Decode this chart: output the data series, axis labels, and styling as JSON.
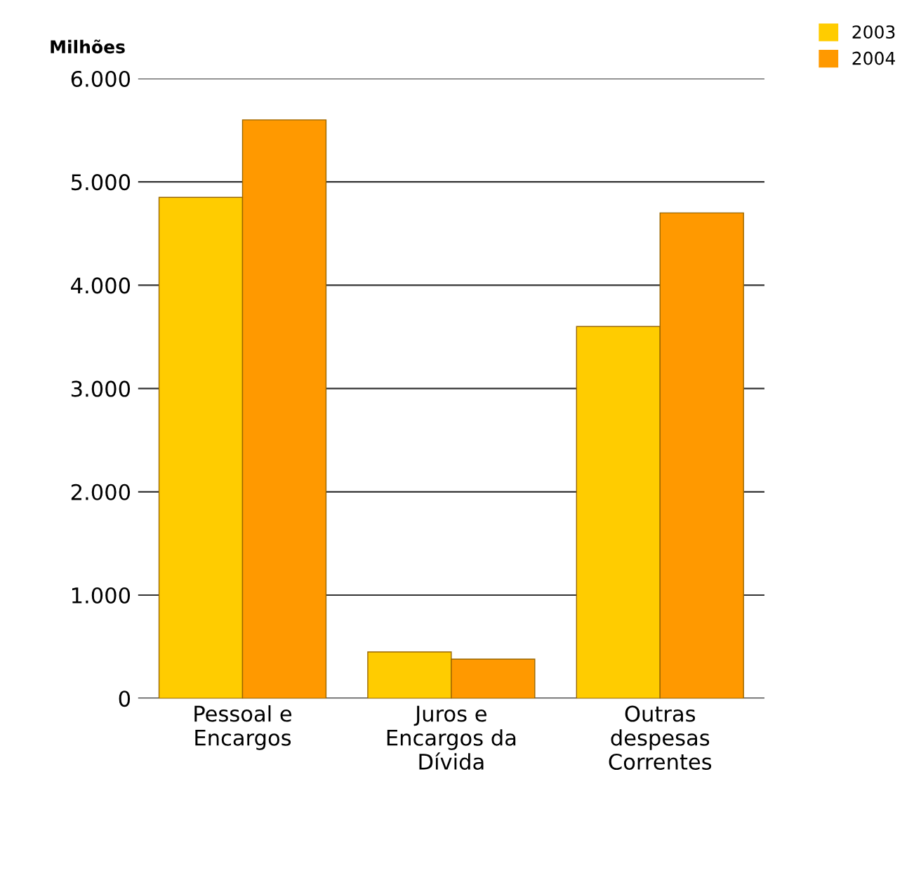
{
  "chart_data": {
    "type": "bar",
    "ylabel": "Milhões",
    "categories": [
      "Pessoal e\nEncargos",
      "Juros e\nEncargos da\nDívida",
      "Outras\ndespesas\nCorrentes"
    ],
    "series": [
      {
        "name": "2003",
        "color": "#ffcc00",
        "values": [
          4850,
          450,
          3600
        ]
      },
      {
        "name": "2004",
        "color": "#ff9900",
        "values": [
          5600,
          380,
          4700
        ]
      }
    ],
    "ylim": [
      0,
      6000
    ],
    "yticks": [
      {
        "value": 0,
        "label": "0"
      },
      {
        "value": 1000,
        "label": "1.000"
      },
      {
        "value": 2000,
        "label": "2.000"
      },
      {
        "value": 3000,
        "label": "3.000"
      },
      {
        "value": 4000,
        "label": "4.000"
      },
      {
        "value": 5000,
        "label": "5.000"
      },
      {
        "value": 6000,
        "label": "6.000"
      }
    ],
    "grid": "y",
    "legend": "top right"
  }
}
